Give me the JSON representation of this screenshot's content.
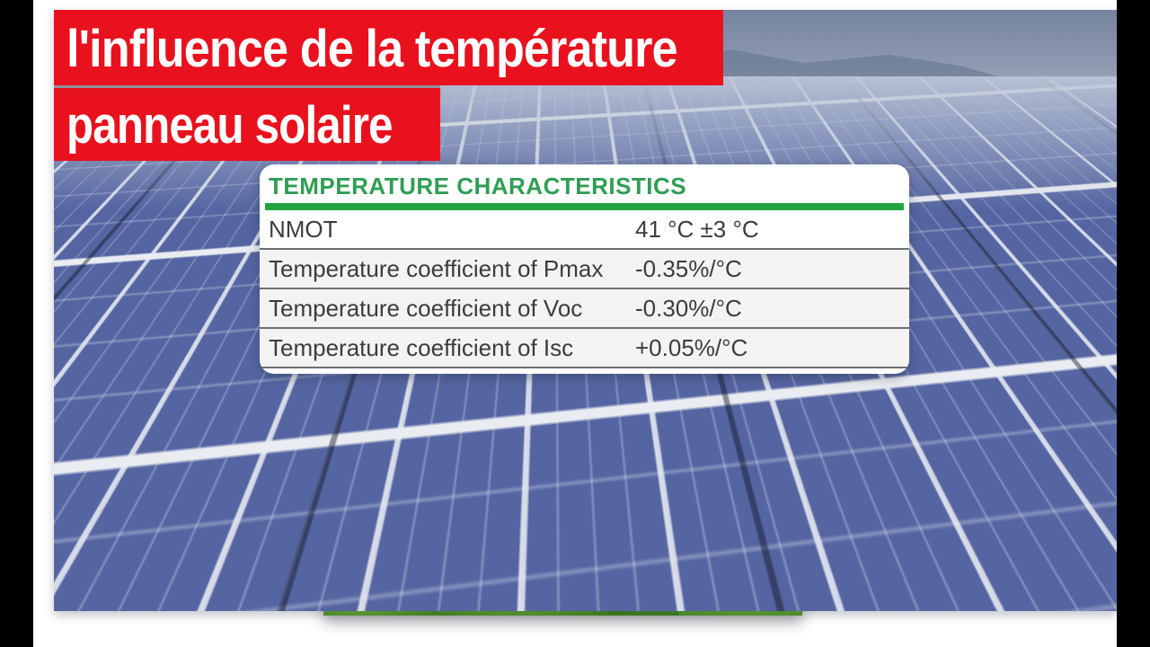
{
  "frame": {
    "letterbox_color": "#000000",
    "page_background": "#ffffff"
  },
  "banner": {
    "line1": "l'influence de la température",
    "line2": "panneau solaire",
    "background_color": "#e9111d",
    "text_color": "#ffffff"
  },
  "spec_card": {
    "title": "TEMPERATURE CHARACTERISTICS",
    "title_color": "#2f9e53",
    "accent_bar_color": "#21a33e",
    "rows": [
      {
        "label": "NMOT",
        "value": "41 °C  ±3 °C"
      },
      {
        "label": "Temperature coefficient of Pmax",
        "value": "-0.35%/°C"
      },
      {
        "label": "Temperature coefficient of Voc",
        "value": "-0.30%/°C"
      },
      {
        "label": "Temperature coefficient of Isc",
        "value": "+0.05%/°C"
      }
    ],
    "reflection": {
      "label": "Temperature coefficient of Isc",
      "value": "+0.05%/°C"
    }
  },
  "scene": {
    "background_photo": "utility-scale-solar-panel-field",
    "inset_photo": "house-with-rooftop-solar-panels",
    "panel_color": "#5565a2",
    "sky_color": "#76839d",
    "house_sky_color": "#4aa6e6",
    "roof_color": "#c2611f",
    "bush_color": "#4e8c2e"
  }
}
